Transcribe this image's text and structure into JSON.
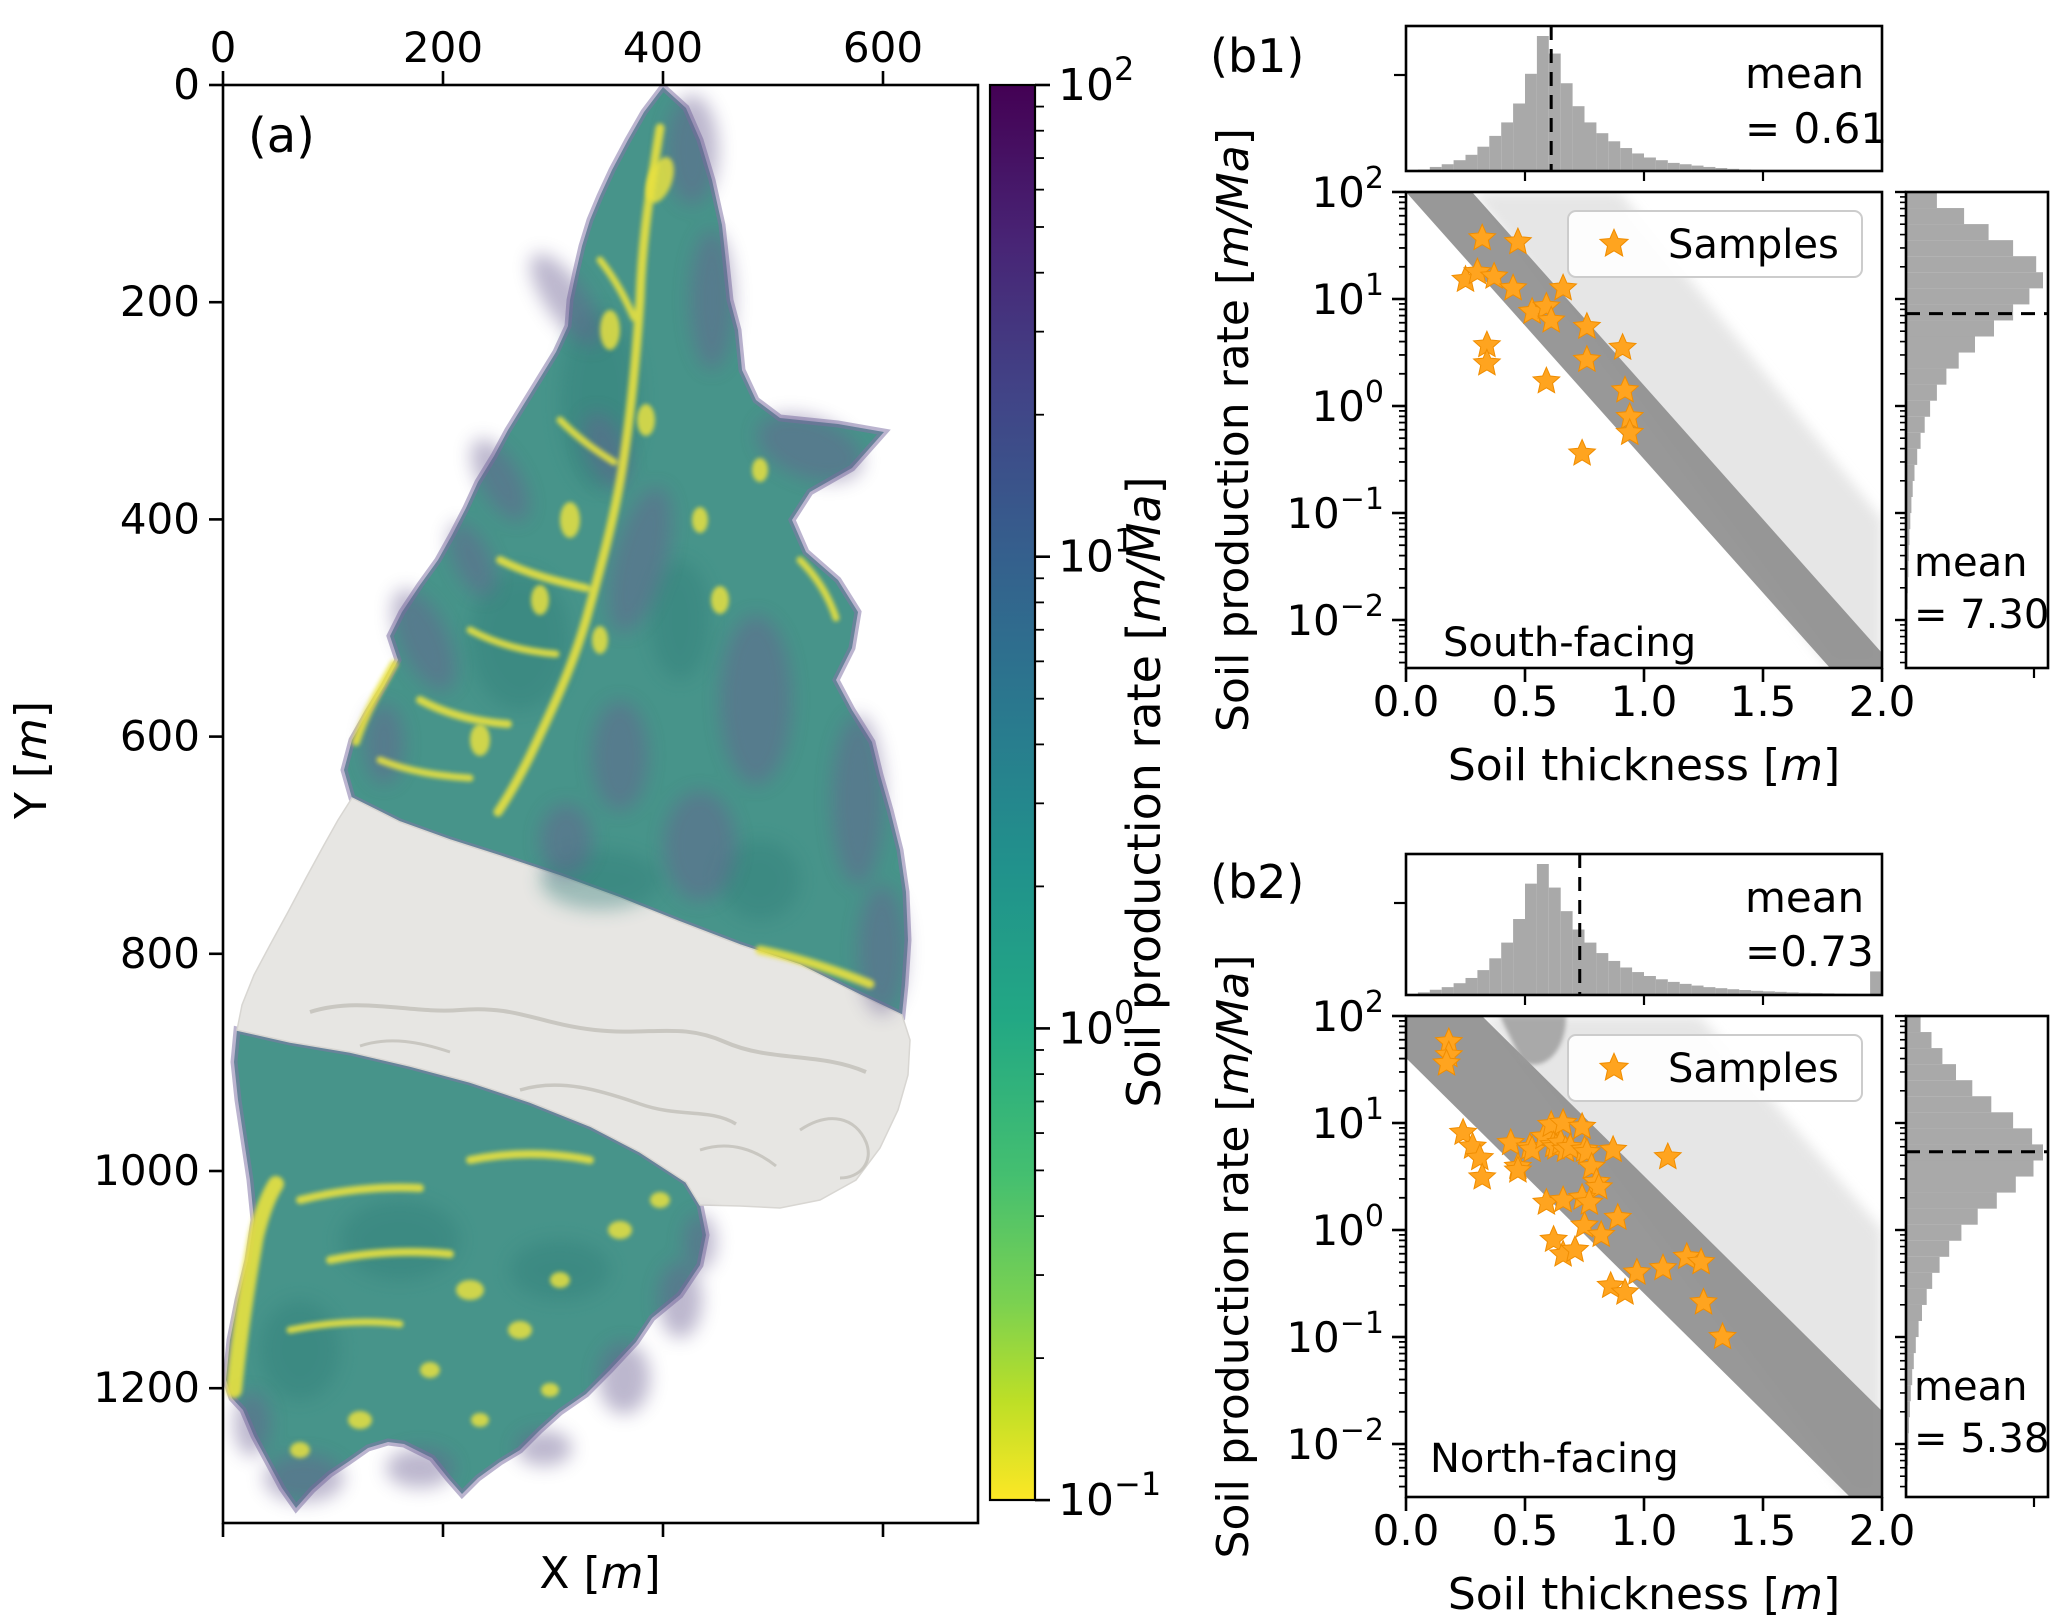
{
  "ui": {
    "panel_a": {
      "label": "(a)",
      "xlabel": "X [m]",
      "ylabel": "Y [m]",
      "x_tick_labels": [
        "0",
        "200",
        "400",
        "600"
      ],
      "y_tick_labels": [
        "0",
        "200",
        "400",
        "600",
        "800",
        "1000",
        "1200"
      ],
      "colorbar_label": "Soil production rate [m/Ma]",
      "colorbar_tick_exponents": [
        2,
        1,
        0,
        -1
      ]
    },
    "panel_b1": {
      "label": "(b1)",
      "facing_label": "South-facing",
      "legend_label": "Samples",
      "top_mean_line1": "mean",
      "top_mean_line2": "= 0.61",
      "right_mean_line1": "mean",
      "right_mean_line2": "= 7.30",
      "xlabel": "Soil thickness [m]",
      "ylabel": "Soil production rate [m/Ma]",
      "x_tick_labels": [
        "0.0",
        "0.5",
        "1.0",
        "1.5",
        "2.0"
      ],
      "y_tick_exponents": [
        2,
        1,
        0,
        -1,
        -2
      ]
    },
    "panel_b2": {
      "label": "(b2)",
      "facing_label": "North-facing",
      "legend_label": "Samples",
      "top_mean_line1": "mean",
      "top_mean_line2": "=0.73",
      "right_mean_line1": "mean",
      "right_mean_line2": "= 5.38",
      "xlabel": "Soil thickness [m]",
      "ylabel": "Soil production rate [m/Ma]",
      "x_tick_labels": [
        "0.0",
        "0.5",
        "1.0",
        "1.5",
        "2.0"
      ],
      "y_tick_exponents": [
        2,
        1,
        0,
        -1,
        -2
      ]
    },
    "colors": {
      "sample_star": "#ffa41f",
      "sample_star_edge": "#f08d00",
      "hist_bar": "#a9a9a9",
      "dense_band": "#8f8f8f",
      "light_cloud": "#e0e0e0"
    }
  },
  "chart_data": [
    {
      "id": "map_a",
      "type": "heatmap",
      "title": "(a)",
      "xlabel": "X [m]",
      "ylabel": "Y [m]",
      "x_ticks": [
        0,
        200,
        400,
        600
      ],
      "y_ticks": [
        0,
        200,
        400,
        600,
        800,
        1000,
        1200
      ],
      "xlim": [
        0,
        685
      ],
      "ylim": [
        1322,
        0
      ],
      "colorbar": {
        "label": "Soil production rate [m/Ma]",
        "scale": "log",
        "range": [
          0.1,
          100
        ],
        "tick_exponents": [
          2,
          1,
          0,
          -1
        ],
        "colormap": "viridis reversed (dark purple = 100, yellow = 0.1)"
      },
      "description": "Hillshaded catchment map of soil production rate; upper and lower hillslopes colored teal/green with yellow channel streaks and purple margins; central floodplain band shown as uncolored gray hillshade"
    },
    {
      "id": "b1_scatter",
      "type": "scatter",
      "series_name": "Samples",
      "annotation": "South-facing",
      "xlabel": "Soil thickness [m]",
      "ylabel": "Soil production rate [m/Ma]",
      "xlim": [
        0,
        2
      ],
      "ylim_log10": [
        -2.45,
        2
      ],
      "samples": [
        [
          0.32,
          37
        ],
        [
          0.47,
          34
        ],
        [
          0.25,
          15.1
        ],
        [
          0.3,
          17.8
        ],
        [
          0.37,
          16.2
        ],
        [
          0.45,
          12.6
        ],
        [
          0.53,
          7.6
        ],
        [
          0.59,
          8.5
        ],
        [
          0.61,
          6.3
        ],
        [
          0.66,
          12.6
        ],
        [
          0.76,
          5.5
        ],
        [
          0.91,
          3.5
        ],
        [
          0.76,
          2.7
        ],
        [
          0.34,
          3.7
        ],
        [
          0.34,
          2.5
        ],
        [
          0.59,
          1.7
        ],
        [
          0.92,
          1.4
        ],
        [
          0.94,
          0.79
        ],
        [
          0.94,
          0.56
        ],
        [
          0.74,
          0.36
        ]
      ],
      "band": {
        "log10_intercept": 2.35,
        "slope_decades_per_m": -2.5,
        "half_width_decades": 0.34
      }
    },
    {
      "id": "b1_top_hist",
      "type": "bar",
      "orientation": "vertical",
      "variable": "Soil thickness [m]",
      "mean": 0.61,
      "bin_start": 0.0,
      "bin_width": 0.05,
      "heights_rel": [
        0,
        0.01,
        0.03,
        0.05,
        0.08,
        0.12,
        0.18,
        0.26,
        0.36,
        0.5,
        0.72,
        1.0,
        0.87,
        0.65,
        0.48,
        0.36,
        0.28,
        0.22,
        0.17,
        0.13,
        0.1,
        0.08,
        0.06,
        0.05,
        0.04,
        0.03,
        0.022,
        0.016,
        0.011,
        0.008,
        0.005,
        0.003,
        0,
        0,
        0,
        0,
        0,
        0,
        0,
        0
      ]
    },
    {
      "id": "b1_right_hist",
      "type": "bar",
      "orientation": "horizontal",
      "variable": "Soil production rate [m/Ma]",
      "mean": 7.3,
      "log10_bin_top": 2.0,
      "log10_bin_step": 0.15,
      "lengths_rel": [
        0.22,
        0.42,
        0.6,
        0.78,
        0.95,
        1.0,
        0.9,
        0.78,
        0.64,
        0.5,
        0.38,
        0.29,
        0.22,
        0.17,
        0.13,
        0.1,
        0.075,
        0.055,
        0.042,
        0.032,
        0.024,
        0.018,
        0.013,
        0.01,
        0.007,
        0.005,
        0.004,
        0.003,
        0.002,
        0.001
      ]
    },
    {
      "id": "b2_scatter",
      "type": "scatter",
      "series_name": "Samples",
      "annotation": "North-facing",
      "xlabel": "Soil thickness [m]",
      "ylabel": "Soil production rate [m/Ma]",
      "xlim": [
        0,
        2
      ],
      "ylim_log10": [
        -2.5,
        2
      ],
      "samples": [
        [
          0.18,
          57
        ],
        [
          0.18,
          43
        ],
        [
          0.17,
          36
        ],
        [
          0.24,
          8.1
        ],
        [
          0.28,
          6.0
        ],
        [
          0.31,
          4.7
        ],
        [
          0.32,
          3.1
        ],
        [
          0.44,
          6.5
        ],
        [
          0.47,
          3.9
        ],
        [
          0.52,
          5.9
        ],
        [
          0.53,
          5.6
        ],
        [
          0.58,
          7.4
        ],
        [
          0.61,
          9.6
        ],
        [
          0.62,
          6.2
        ],
        [
          0.63,
          5.9
        ],
        [
          0.65,
          6.5
        ],
        [
          0.66,
          10.0
        ],
        [
          0.67,
          5.6
        ],
        [
          0.69,
          5.9
        ],
        [
          0.74,
          9.2
        ],
        [
          0.75,
          5.6
        ],
        [
          0.76,
          5.3
        ],
        [
          0.78,
          3.9
        ],
        [
          0.8,
          2.8
        ],
        [
          0.81,
          2.5
        ],
        [
          0.87,
          5.6
        ],
        [
          0.89,
          1.3
        ],
        [
          1.1,
          4.8
        ],
        [
          0.47,
          3.6
        ],
        [
          0.59,
          1.8
        ],
        [
          0.66,
          1.9
        ],
        [
          0.74,
          2.0
        ],
        [
          0.75,
          1.1
        ],
        [
          0.77,
          1.8
        ],
        [
          0.82,
          0.9
        ],
        [
          0.62,
          0.81
        ],
        [
          0.66,
          0.59
        ],
        [
          0.71,
          0.65
        ],
        [
          0.86,
          0.3
        ],
        [
          0.92,
          0.26
        ],
        [
          0.97,
          0.4
        ],
        [
          1.08,
          0.44
        ],
        [
          1.18,
          0.56
        ],
        [
          1.24,
          0.5
        ],
        [
          1.25,
          0.21
        ],
        [
          1.33,
          0.1
        ]
      ],
      "band": {
        "log10_intercept": 2.155,
        "slope_decades_per_m": -2.2,
        "half_width_decades": 0.55
      }
    },
    {
      "id": "b2_top_hist",
      "type": "bar",
      "orientation": "vertical",
      "variable": "Soil thickness [m]",
      "mean": 0.73,
      "bin_start": 0.0,
      "bin_width": 0.05,
      "heights_rel": [
        0,
        0.02,
        0.04,
        0.06,
        0.09,
        0.13,
        0.19,
        0.28,
        0.4,
        0.58,
        0.85,
        1.0,
        0.82,
        0.64,
        0.5,
        0.4,
        0.32,
        0.26,
        0.21,
        0.175,
        0.145,
        0.12,
        0.1,
        0.085,
        0.072,
        0.06,
        0.052,
        0.044,
        0.038,
        0.032,
        0.028,
        0.024,
        0.02,
        0.017,
        0.015,
        0.013,
        0.011,
        0.01,
        0.009,
        0.18
      ]
    },
    {
      "id": "b2_right_hist",
      "type": "bar",
      "orientation": "horizontal",
      "variable": "Soil production rate [m/Ma]",
      "mean": 5.38,
      "log10_bin_top": 2.0,
      "log10_bin_step": 0.15,
      "lengths_rel": [
        0.1,
        0.18,
        0.26,
        0.36,
        0.48,
        0.62,
        0.78,
        0.92,
        1.0,
        0.93,
        0.8,
        0.66,
        0.52,
        0.4,
        0.31,
        0.24,
        0.185,
        0.145,
        0.11,
        0.085,
        0.065,
        0.05,
        0.038,
        0.028,
        0.021,
        0.015,
        0.011,
        0.008,
        0.005,
        0.003
      ]
    }
  ]
}
